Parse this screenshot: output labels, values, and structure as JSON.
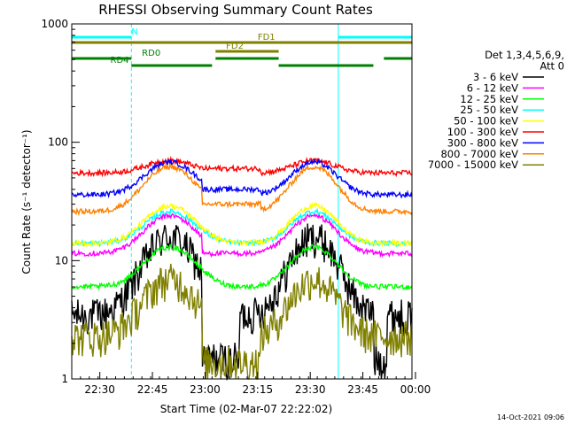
{
  "chart_data": {
    "type": "line",
    "title": "RHESSI Observing Summary Count Rates",
    "xlabel": "Start Time (02-Mar-07 22:22:02)",
    "ylabel": "Count Rate (s⁻¹ detector⁻¹)",
    "yscale": "log",
    "ylim": [
      1,
      1000
    ],
    "y_ticks": [
      {
        "v": 1,
        "label": "1"
      },
      {
        "v": 10,
        "label": "10"
      },
      {
        "v": 100,
        "label": "100"
      },
      {
        "v": 1000,
        "label": "1000"
      }
    ],
    "xlim_minutes": [
      0,
      97
    ],
    "x_ticks": [
      {
        "t": 8,
        "label": "22:30"
      },
      {
        "t": 23,
        "label": "22:45"
      },
      {
        "t": 38,
        "label": "23:00"
      },
      {
        "t": 53,
        "label": "23:15"
      },
      {
        "t": 68,
        "label": "23:30"
      },
      {
        "t": 83,
        "label": "23:45"
      },
      {
        "t": 98,
        "label": "00:00"
      }
    ],
    "legend": {
      "header": [
        "Det 1,3,4,5,6,9,",
        "Att 0"
      ],
      "placement": "right"
    },
    "series": [
      {
        "name": "3 - 6 keV",
        "color": "#000000",
        "base": 3.5,
        "peak": 16,
        "min": 1.0
      },
      {
        "name": "6 - 12 keV",
        "color": "#ff00ff",
        "base": 11.5,
        "peak": 24,
        "min": 9
      },
      {
        "name": "12 - 25 keV",
        "color": "#00ff00",
        "base": 6,
        "peak": 13,
        "min": 5.5
      },
      {
        "name": "25 - 50 keV",
        "color": "#00ffff",
        "base": 14,
        "peak": 26,
        "min": 13
      },
      {
        "name": "50 - 100 keV",
        "color": "#ffff00",
        "base": 14,
        "peak": 29,
        "min": 13
      },
      {
        "name": "100 - 300 keV",
        "color": "#ff0000",
        "base": 55,
        "peak": 70,
        "min": 55
      },
      {
        "name": "300 - 800 keV",
        "color": "#0000ff",
        "base": 36,
        "peak": 68,
        "min": 34
      },
      {
        "name": "800 - 7000 keV",
        "color": "#ff8000",
        "base": 26,
        "peak": 62,
        "min": 25
      },
      {
        "name": "7000 - 15000 keV",
        "color": "#808000",
        "base": 2.3,
        "peak": 7,
        "min": 1.0
      }
    ],
    "flags": [
      {
        "label": "N",
        "color": "#00ffff",
        "segments": [
          [
            0,
            17
          ],
          [
            76,
            97
          ]
        ]
      },
      {
        "label": "FD1",
        "color": "#808000",
        "segments": [
          [
            0,
            59
          ],
          [
            59,
            97
          ]
        ]
      },
      {
        "label": "FD2",
        "color": "#808000",
        "segments": [
          [
            41,
            59
          ]
        ]
      },
      {
        "label": "RD0",
        "color": "#008000",
        "segments": [
          [
            0,
            17
          ],
          [
            41,
            59
          ],
          [
            89,
            97
          ]
        ]
      },
      {
        "label": "RD4",
        "color": "#008000",
        "segments": [
          [
            17,
            40
          ],
          [
            59,
            86
          ]
        ]
      }
    ],
    "night_boundaries_minutes": [
      0,
      17,
      76,
      97
    ],
    "date_stamp": "14-Oct-2021 09:06"
  }
}
